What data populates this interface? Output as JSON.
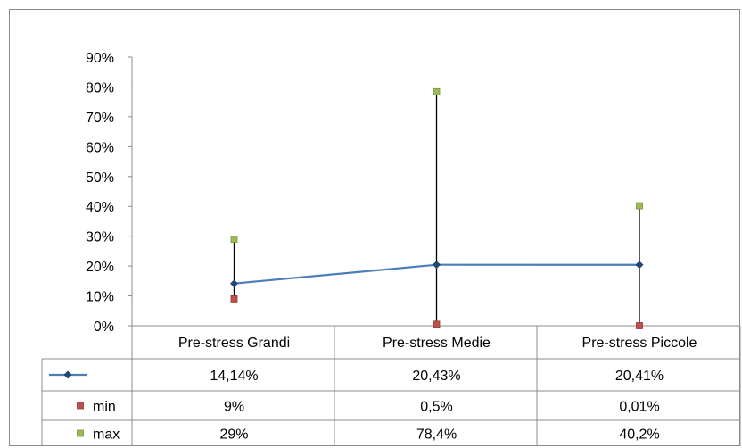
{
  "chart_data": {
    "type": "line",
    "categories": [
      "Pre-stress Grandi",
      "Pre-stress Medie",
      "Pre-stress Piccole"
    ],
    "ylim": [
      0,
      0.9
    ],
    "yticks": [
      0,
      0.1,
      0.2,
      0.3,
      0.4,
      0.5,
      0.6,
      0.7,
      0.8,
      0.9
    ],
    "ytick_labels": [
      "0%",
      "10%",
      "20%",
      "30%",
      "40%",
      "50%",
      "60%",
      "70%",
      "80%",
      "90%"
    ],
    "grid": false,
    "legend": "data-table",
    "series": [
      {
        "key": "mean",
        "name": "",
        "type": "line",
        "color": "#4a7ebb",
        "values": [
          0.1414,
          0.2043,
          0.2041
        ],
        "labels": [
          "14,14%",
          "20,43%",
          "20,41%"
        ]
      },
      {
        "key": "min",
        "name": "min",
        "type": "marker",
        "color": "#c0504d",
        "values": [
          0.09,
          0.005,
          0.0001
        ],
        "labels": [
          "9%",
          "0,5%",
          "0,01%"
        ]
      },
      {
        "key": "max",
        "name": "max",
        "type": "marker",
        "color": "#9bbb59",
        "values": [
          0.29,
          0.784,
          0.402
        ],
        "labels": [
          "29%",
          "78,4%",
          "40,2%"
        ]
      }
    ]
  }
}
